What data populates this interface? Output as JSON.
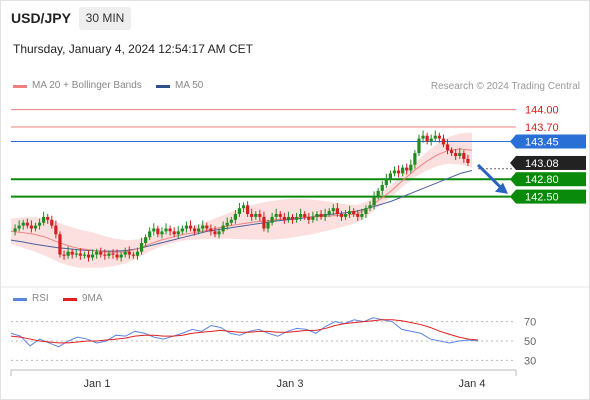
{
  "header": {
    "symbol": "USD/JPY",
    "timeframe": "30 MIN",
    "datetime": "Thursday, January 4, 2024 12:54:17 AM CET"
  },
  "legend": {
    "ma20": "MA 20 + Bollinger Bands",
    "ma50": "MA 50",
    "watermark": "Research © 2024 Trading Central",
    "rsi": "RSI",
    "ma9": "9MA"
  },
  "colors": {
    "up": "#1f8c1f",
    "down": "#d22020",
    "resistance": "#f08080",
    "pivot": "#2a6fd6",
    "support": "#0a8a0a",
    "ma50": "#4a5fa0",
    "bollinger": "#fbd7d7",
    "rsi": "#5b86e0",
    "rsi_ma": "#e02020",
    "arrow": "#2a63c0"
  },
  "chart_data": [
    {
      "type": "line",
      "title": "",
      "x_ticks": [
        "Jan 1",
        "Jan 3",
        "Jan 4"
      ],
      "ylim": [
        141.2,
        144.2
      ],
      "levels": [
        {
          "value": 144.0,
          "label": "144.00",
          "kind": "resistance"
        },
        {
          "value": 143.7,
          "label": "143.70",
          "kind": "resistance"
        },
        {
          "value": 143.45,
          "label": "143.45",
          "kind": "pivot"
        },
        {
          "value": 143.08,
          "label": "143.08",
          "kind": "last"
        },
        {
          "value": 142.8,
          "label": "142.80",
          "kind": "support"
        },
        {
          "value": 142.5,
          "label": "142.50",
          "kind": "support"
        }
      ],
      "price_path": [
        141.9,
        141.95,
        142.0,
        142.05,
        142.0,
        141.95,
        142.0,
        142.05,
        142.15,
        142.1,
        142.0,
        141.85,
        141.5,
        141.48,
        141.55,
        141.5,
        141.52,
        141.48,
        141.5,
        141.45,
        141.5,
        141.55,
        141.5,
        141.48,
        141.52,
        141.5,
        141.45,
        141.5,
        141.55,
        141.5,
        141.48,
        141.55,
        141.7,
        141.8,
        141.9,
        141.95,
        141.85,
        141.9,
        141.95,
        141.9,
        141.85,
        141.9,
        141.95,
        142.0,
        141.95,
        141.9,
        141.95,
        142.0,
        141.95,
        141.9,
        141.85,
        141.9,
        142.0,
        142.05,
        142.1,
        142.2,
        142.3,
        142.35,
        142.2,
        142.15,
        142.2,
        142.15,
        141.95,
        142.05,
        142.15,
        142.2,
        142.15,
        142.1,
        142.15,
        142.1,
        142.15,
        142.2,
        142.15,
        142.1,
        142.15,
        142.2,
        142.15,
        142.2,
        142.25,
        142.3,
        142.2,
        142.15,
        142.2,
        142.25,
        142.2,
        142.15,
        142.2,
        142.3,
        142.35,
        142.5,
        142.6,
        142.7,
        142.8,
        142.9,
        142.95,
        142.9,
        143.0,
        142.95,
        143.05,
        143.25,
        143.5,
        143.55,
        143.45,
        143.5,
        143.55,
        143.5,
        143.4,
        143.3,
        143.25,
        143.2,
        143.25,
        143.15,
        143.08
      ],
      "ma20": [
        141.9,
        141.88,
        141.85,
        141.8,
        141.72,
        141.65,
        141.6,
        141.58,
        141.55,
        141.54,
        141.55,
        141.6,
        141.68,
        141.75,
        141.8,
        141.85,
        141.88,
        141.92,
        141.96,
        142.0,
        142.03,
        142.06,
        142.08,
        142.1,
        142.12,
        142.14,
        142.15,
        142.16,
        142.17,
        142.18,
        142.2,
        142.3,
        142.45,
        142.6,
        142.78,
        142.95,
        143.1,
        143.22,
        143.3,
        143.32,
        143.3
      ],
      "ma50": [
        141.75,
        141.72,
        141.68,
        141.65,
        141.62,
        141.6,
        141.58,
        141.57,
        141.56,
        141.56,
        141.57,
        141.6,
        141.65,
        141.7,
        141.75,
        141.8,
        141.85,
        141.9,
        141.93,
        141.96,
        141.99,
        142.02,
        142.05,
        142.08,
        142.1,
        142.12,
        142.15,
        142.18,
        142.2,
        142.22,
        142.25,
        142.3,
        142.36,
        142.42,
        142.5,
        142.58,
        142.66,
        142.74,
        142.82,
        142.9,
        142.95
      ],
      "forecast_arrow": {
        "from": 143.08,
        "to": 142.55
      }
    },
    {
      "type": "line",
      "title": "",
      "ylim": [
        20,
        80
      ],
      "y_ticks": [
        "70",
        "50",
        "30"
      ],
      "series": [
        {
          "name": "RSI",
          "values": [
            58,
            55,
            45,
            52,
            48,
            44,
            50,
            54,
            52,
            48,
            50,
            56,
            55,
            60,
            58,
            54,
            52,
            55,
            58,
            62,
            60,
            66,
            64,
            58,
            56,
            60,
            62,
            58,
            55,
            60,
            63,
            62,
            58,
            65,
            70,
            68,
            72,
            70,
            74,
            72,
            70,
            62,
            60,
            58,
            52,
            50,
            48,
            50,
            51,
            50
          ]
        },
        {
          "name": "9MA",
          "values": [
            55,
            54,
            52,
            50,
            49,
            48,
            48,
            49,
            50,
            50,
            51,
            52,
            53,
            55,
            56,
            56,
            55,
            55,
            56,
            58,
            59,
            60,
            61,
            60,
            59,
            59,
            60,
            60,
            59,
            59,
            60,
            61,
            61,
            63,
            66,
            68,
            69,
            70,
            71,
            72,
            72,
            71,
            69,
            67,
            64,
            60,
            57,
            54,
            52,
            51
          ]
        }
      ]
    }
  ]
}
